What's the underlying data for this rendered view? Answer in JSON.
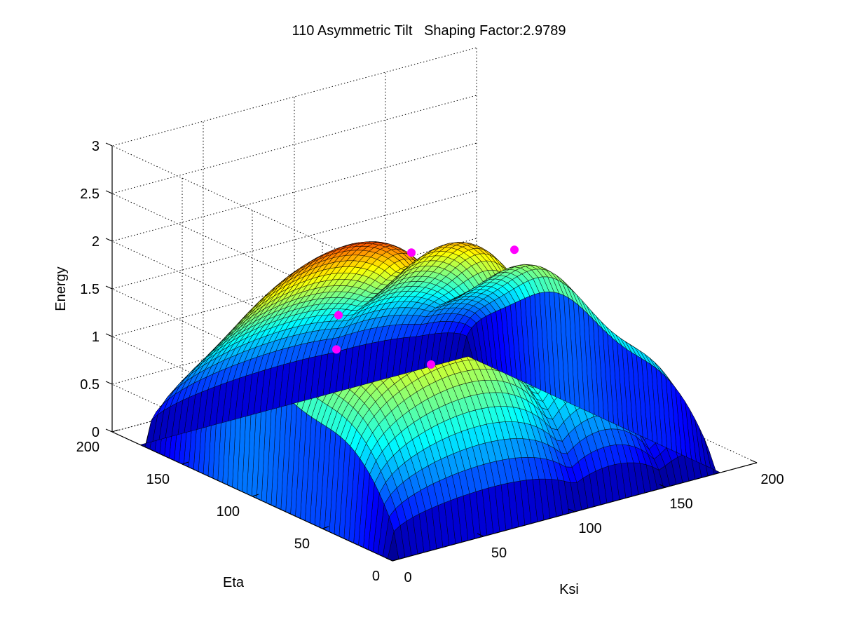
{
  "chart_data": {
    "type": "surface",
    "title": "110 Asymmetric Tilt   Shaping Factor:2.9789",
    "xlabel": "Ksi",
    "ylabel": "Eta",
    "zlabel": "Energy",
    "xlim": [
      0,
      200
    ],
    "ylim": [
      0,
      200
    ],
    "zlim": [
      0,
      3
    ],
    "xticks": [
      "0",
      "50",
      "100",
      "150",
      "200"
    ],
    "yticks": [
      "0",
      "50",
      "100",
      "150",
      "200"
    ],
    "zticks": [
      "0",
      "0.5",
      "1",
      "1.5",
      "2",
      "2.5",
      "3"
    ],
    "grid": true,
    "colormap": "jet",
    "marker_color": "#ff00ff",
    "surface_extent": {
      "x": [
        0,
        180
      ],
      "y": [
        0,
        180
      ]
    },
    "markers": [
      {
        "x": 55,
        "y": 110,
        "z": 1.55
      },
      {
        "x": 50,
        "y": 105,
        "z": 1.25
      },
      {
        "x": 75,
        "y": 70,
        "z": 1.2
      },
      {
        "x": 95,
        "y": 110,
        "z": 2.0
      },
      {
        "x": 140,
        "y": 95,
        "z": 1.9
      }
    ]
  }
}
